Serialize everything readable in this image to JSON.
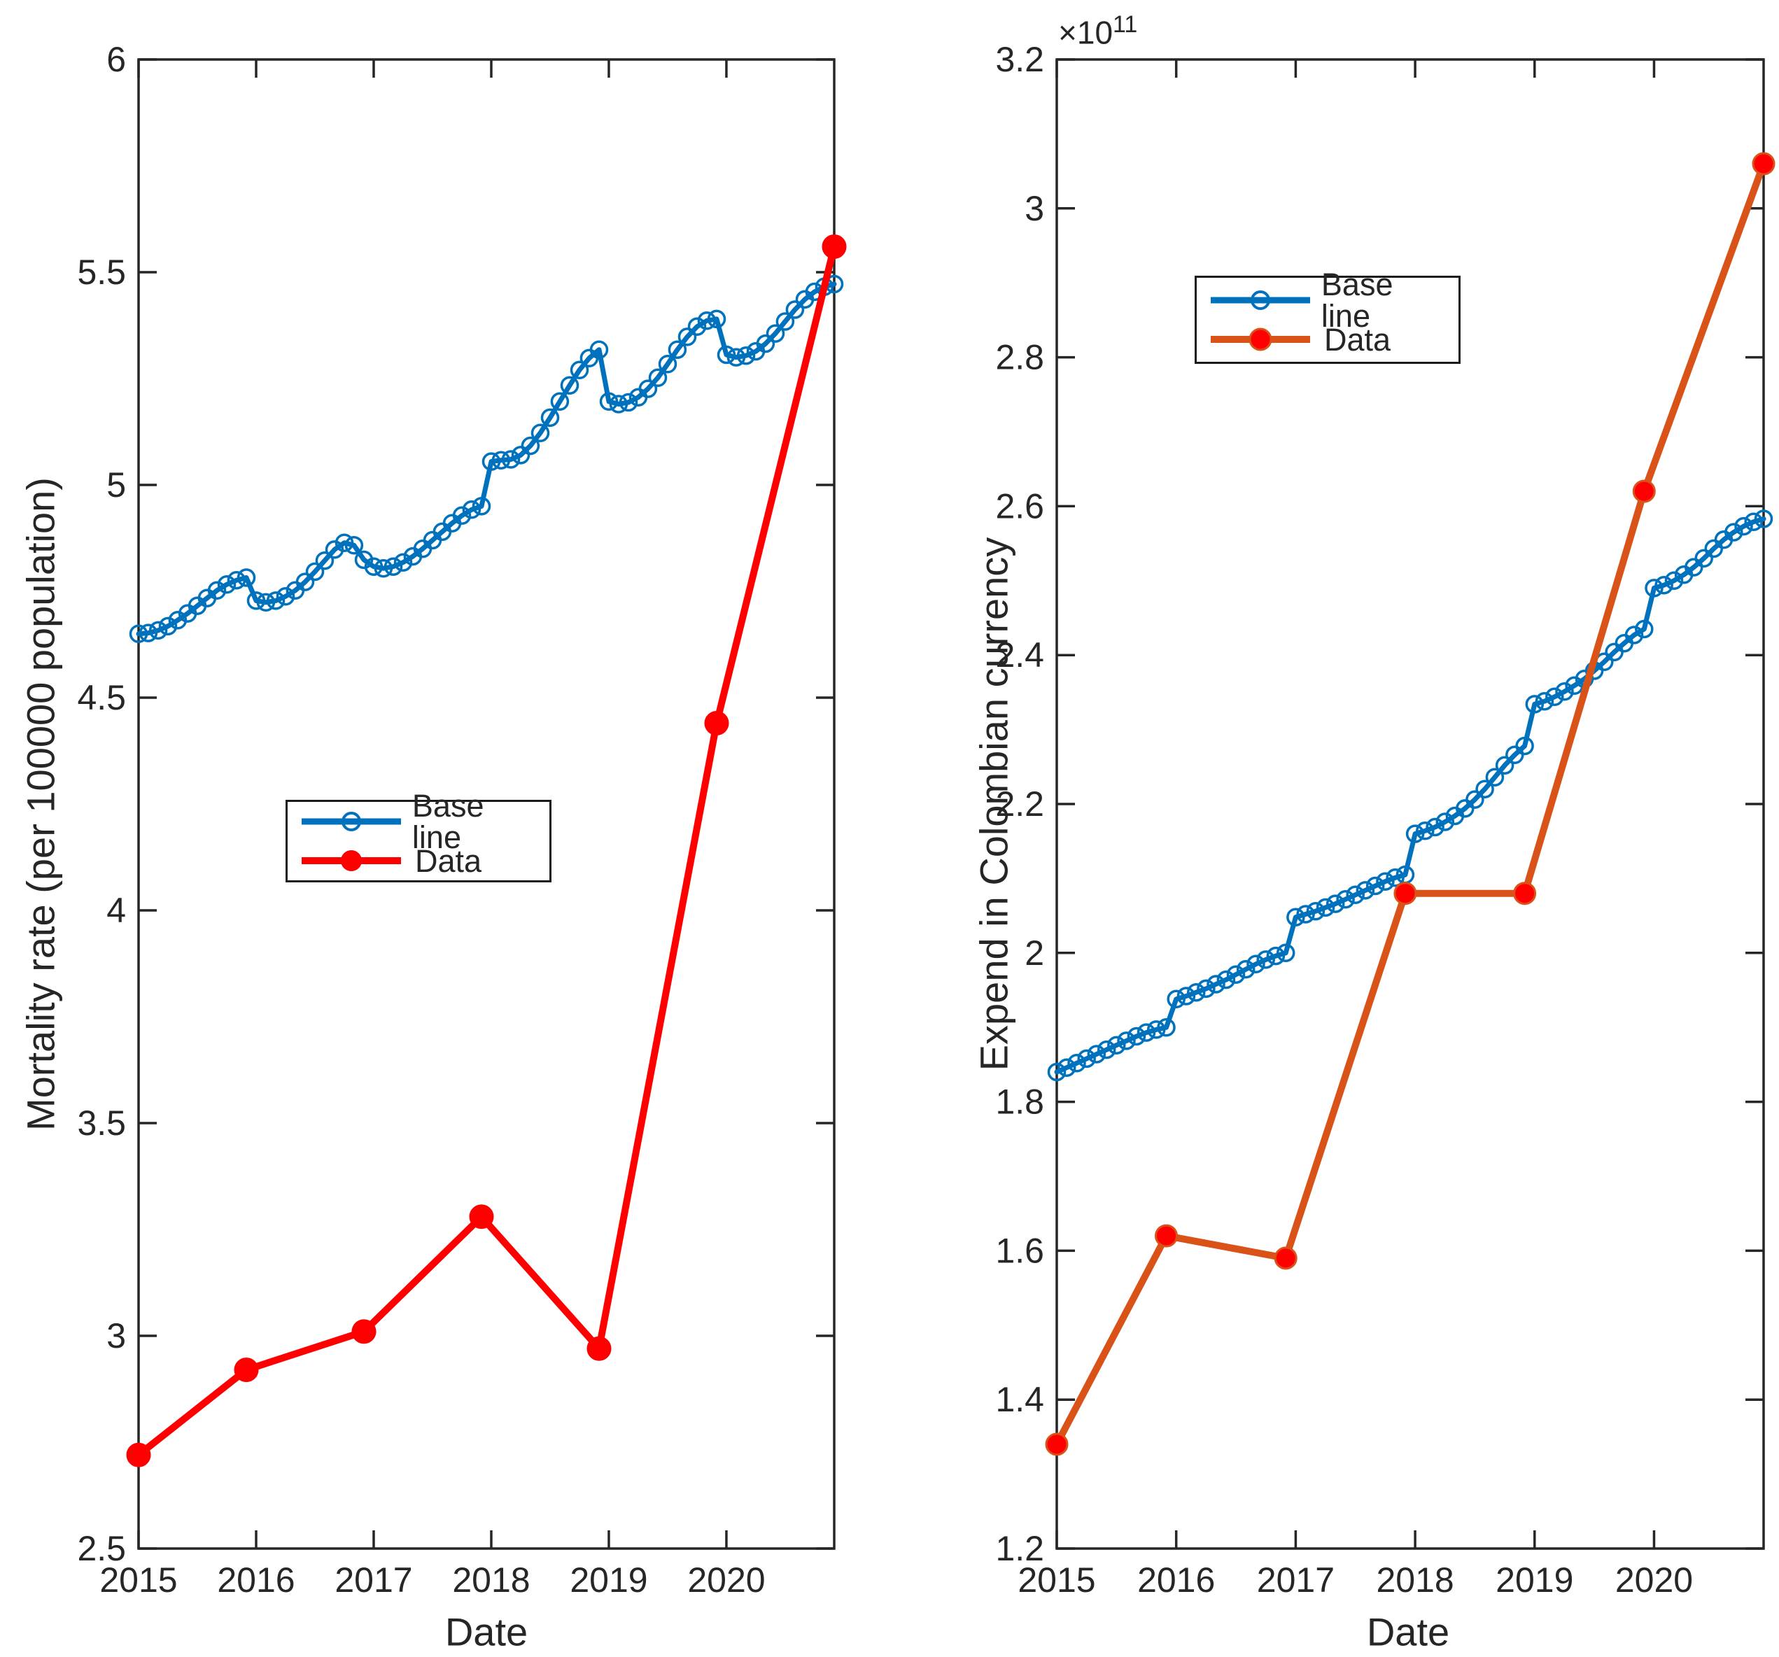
{
  "colors": {
    "axis": "#262626",
    "text": "#262626",
    "background": "#FFFFFF",
    "baseline_blue": "#0072BD",
    "data_red": "#FF0000",
    "data_orange": "#D95319"
  },
  "chart_data": [
    {
      "type": "line",
      "title": "",
      "xlabel": "Date",
      "ylabel": "Mortality rate (per 100000 population)",
      "grid": false,
      "legend_position": "center-left",
      "xlim": [
        2015,
        2020.917
      ],
      "ylim": [
        2.5,
        6
      ],
      "xticks": {
        "values": [
          2015,
          2016,
          2017,
          2018,
          2019,
          2020
        ],
        "labels": [
          "2015",
          "2016",
          "2017",
          "2018",
          "2019",
          "2020"
        ]
      },
      "yticks": {
        "values": [
          2.5,
          3,
          3.5,
          4,
          4.5,
          5,
          5.5,
          6
        ],
        "labels": [
          "2.5",
          "3",
          "3.5",
          "4",
          "4.5",
          "5",
          "5.5",
          "6"
        ]
      },
      "series": [
        {
          "name": "Base line",
          "color": "#0072BD",
          "line_width": 7,
          "marker": {
            "shape": "circle-open",
            "size": 23,
            "color": "#0072BD"
          },
          "x": [
            2015,
            2015.083,
            2015.167,
            2015.25,
            2015.333,
            2015.417,
            2015.5,
            2015.583,
            2015.667,
            2015.75,
            2015.833,
            2015.917,
            2016,
            2016.083,
            2016.167,
            2016.25,
            2016.333,
            2016.417,
            2016.5,
            2016.583,
            2016.667,
            2016.75,
            2016.833,
            2016.917,
            2017,
            2017.083,
            2017.167,
            2017.25,
            2017.333,
            2017.417,
            2017.5,
            2017.583,
            2017.667,
            2017.75,
            2017.833,
            2017.917,
            2018,
            2018.083,
            2018.167,
            2018.25,
            2018.333,
            2018.417,
            2018.5,
            2018.583,
            2018.667,
            2018.75,
            2018.833,
            2018.917,
            2019,
            2019.083,
            2019.167,
            2019.25,
            2019.333,
            2019.417,
            2019.5,
            2019.583,
            2019.667,
            2019.75,
            2019.833,
            2019.917,
            2020,
            2020.083,
            2020.167,
            2020.25,
            2020.333,
            2020.417,
            2020.5,
            2020.583,
            2020.667,
            2020.75,
            2020.833,
            2020.917
          ],
          "y": [
            4.65,
            4.652,
            4.658,
            4.668,
            4.682,
            4.698,
            4.716,
            4.734,
            4.752,
            4.766,
            4.776,
            4.782,
            4.728,
            4.724,
            4.728,
            4.738,
            4.752,
            4.772,
            4.796,
            4.822,
            4.848,
            4.864,
            4.858,
            4.824,
            4.808,
            4.804,
            4.808,
            4.818,
            4.832,
            4.85,
            4.87,
            4.89,
            4.91,
            4.928,
            4.942,
            4.95,
            5.055,
            5.058,
            5.06,
            5.07,
            5.092,
            5.122,
            5.158,
            5.196,
            5.234,
            5.27,
            5.298,
            5.318,
            5.196,
            5.19,
            5.194,
            5.206,
            5.226,
            5.252,
            5.284,
            5.318,
            5.348,
            5.372,
            5.386,
            5.39,
            5.306,
            5.3,
            5.304,
            5.314,
            5.332,
            5.356,
            5.384,
            5.412,
            5.436,
            5.454,
            5.466,
            5.472
          ]
        },
        {
          "name": "Data",
          "color": "#FF0000",
          "line_width": 10,
          "marker": {
            "shape": "circle-filled",
            "size": 32,
            "color": "#FF0000"
          },
          "x": [
            2015,
            2015.917,
            2016.917,
            2017.917,
            2018.917,
            2019.917,
            2020.917
          ],
          "y": [
            2.72,
            2.92,
            3.01,
            3.28,
            2.97,
            4.44,
            5.56
          ]
        }
      ]
    },
    {
      "type": "line",
      "title": "",
      "xlabel": "Date",
      "ylabel": "Expend in Colombian currency",
      "y_exponent_label": "×10",
      "y_exponent_power": "11",
      "y_scale": 100000000000.0,
      "grid": false,
      "legend_position": "upper-left",
      "xlim": [
        2015,
        2020.917
      ],
      "ylim": [
        1.2,
        3.2
      ],
      "xticks": {
        "values": [
          2015,
          2016,
          2017,
          2018,
          2019,
          2020
        ],
        "labels": [
          "2015",
          "2016",
          "2017",
          "2018",
          "2019",
          "2020"
        ]
      },
      "yticks": {
        "values": [
          1.2,
          1.4,
          1.6,
          1.8,
          2,
          2.2,
          2.4,
          2.6,
          2.8,
          3,
          3.2
        ],
        "labels": [
          "1.2",
          "1.4",
          "1.6",
          "1.8",
          "2",
          "2.2",
          "2.4",
          "2.6",
          "2.8",
          "3",
          "3.2"
        ]
      },
      "series": [
        {
          "name": "Base line",
          "color": "#0072BD",
          "line_width": 7,
          "marker": {
            "shape": "circle-open",
            "size": 23,
            "color": "#0072BD"
          },
          "x": [
            2015,
            2015.083,
            2015.167,
            2015.25,
            2015.333,
            2015.417,
            2015.5,
            2015.583,
            2015.667,
            2015.75,
            2015.833,
            2015.917,
            2016,
            2016.083,
            2016.167,
            2016.25,
            2016.333,
            2016.417,
            2016.5,
            2016.583,
            2016.667,
            2016.75,
            2016.833,
            2016.917,
            2017,
            2017.083,
            2017.167,
            2017.25,
            2017.333,
            2017.417,
            2017.5,
            2017.583,
            2017.667,
            2017.75,
            2017.833,
            2017.917,
            2018,
            2018.083,
            2018.167,
            2018.25,
            2018.333,
            2018.417,
            2018.5,
            2018.583,
            2018.667,
            2018.75,
            2018.833,
            2018.917,
            2019,
            2019.083,
            2019.167,
            2019.25,
            2019.333,
            2019.417,
            2019.5,
            2019.583,
            2019.667,
            2019.75,
            2019.833,
            2019.917,
            2020,
            2020.083,
            2020.167,
            2020.25,
            2020.333,
            2020.417,
            2020.5,
            2020.583,
            2020.667,
            2020.75,
            2020.833,
            2020.917
          ],
          "y": [
            1.84,
            1.846,
            1.852,
            1.858,
            1.864,
            1.87,
            1.876,
            1.882,
            1.888,
            1.893,
            1.897,
            1.9,
            1.938,
            1.942,
            1.947,
            1.952,
            1.958,
            1.964,
            1.971,
            1.978,
            1.985,
            1.991,
            1.996,
            2.0,
            2.048,
            2.052,
            2.056,
            2.061,
            2.066,
            2.072,
            2.078,
            2.084,
            2.09,
            2.096,
            2.101,
            2.105,
            2.16,
            2.164,
            2.169,
            2.176,
            2.184,
            2.194,
            2.206,
            2.22,
            2.236,
            2.252,
            2.266,
            2.278,
            2.334,
            2.338,
            2.344,
            2.351,
            2.359,
            2.368,
            2.379,
            2.391,
            2.404,
            2.416,
            2.427,
            2.435,
            2.49,
            2.494,
            2.5,
            2.508,
            2.518,
            2.53,
            2.543,
            2.555,
            2.565,
            2.573,
            2.579,
            2.583
          ]
        },
        {
          "name": "Data",
          "color": "#D95319",
          "line_width": 10,
          "marker": {
            "shape": "circle-filled",
            "size": 30,
            "color": "#FF0000",
            "edge": "#D95319"
          },
          "x": [
            2015,
            2015.917,
            2016.917,
            2017.917,
            2018.917,
            2019.917,
            2020.917
          ],
          "y": [
            1.34,
            1.62,
            1.59,
            2.08,
            2.08,
            2.62,
            3.06
          ]
        }
      ]
    }
  ]
}
